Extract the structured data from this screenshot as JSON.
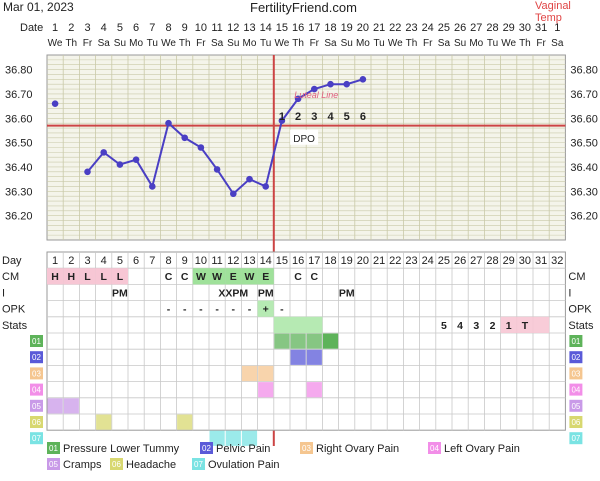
{
  "header": {
    "date": "Mar 01, 2023",
    "site": "FertilityFriend.com",
    "temp_method": "Vaginal Temp"
  },
  "colors": {
    "line": "#4a3fc4",
    "coverline": "#cc4444",
    "grid": "#c9c9a8",
    "chart_bg": "#f4f4ea",
    "cm_pink": "#f7c6d4",
    "cm_green": "#9fe19a",
    "stats_pink": "#f7c6d4",
    "opk_green": "#b6eab3"
  },
  "chart_data": {
    "type": "line",
    "title": "",
    "date_row_label": "Date",
    "day_row_label": "Day",
    "dates": [
      "1",
      "2",
      "3",
      "4",
      "5",
      "6",
      "7",
      "8",
      "9",
      "10",
      "11",
      "12",
      "13",
      "14",
      "15",
      "16",
      "17",
      "18",
      "19",
      "20",
      "21",
      "22",
      "23",
      "24",
      "25",
      "26",
      "27",
      "28",
      "29",
      "30",
      "31",
      "1"
    ],
    "weekdays": [
      "We",
      "Th",
      "Fr",
      "Sa",
      "Su",
      "Mo",
      "Tu",
      "We",
      "Th",
      "Fr",
      "Sa",
      "Su",
      "Mo",
      "Tu",
      "We",
      "Th",
      "Fr",
      "Sa",
      "Su",
      "Mo",
      "Tu",
      "We",
      "Th",
      "Fr",
      "Sa",
      "Su",
      "Mo",
      "Tu",
      "We",
      "Th",
      "Fr",
      "Sa"
    ],
    "days": [
      1,
      2,
      3,
      4,
      5,
      6,
      7,
      8,
      9,
      10,
      11,
      12,
      13,
      14,
      15,
      16,
      17,
      18,
      19,
      20,
      21,
      22,
      23,
      24,
      25,
      26,
      27,
      28,
      29,
      30,
      31,
      32
    ],
    "y_ticks": [
      "36.80",
      "36.70",
      "36.60",
      "36.50",
      "36.40",
      "36.30",
      "36.20"
    ],
    "ylim": [
      36.1,
      36.86
    ],
    "temps": [
      {
        "day": 1,
        "temp": 36.66
      },
      {
        "day": 3,
        "temp": 36.38
      },
      {
        "day": 4,
        "temp": 36.46
      },
      {
        "day": 5,
        "temp": 36.41
      },
      {
        "day": 6,
        "temp": 36.43
      },
      {
        "day": 7,
        "temp": 36.32
      },
      {
        "day": 8,
        "temp": 36.58
      },
      {
        "day": 9,
        "temp": 36.52
      },
      {
        "day": 10,
        "temp": 36.48
      },
      {
        "day": 11,
        "temp": 36.39
      },
      {
        "day": 12,
        "temp": 36.29
      },
      {
        "day": 13,
        "temp": 36.35
      },
      {
        "day": 14,
        "temp": 36.32
      },
      {
        "day": 15,
        "temp": 36.59
      },
      {
        "day": 16,
        "temp": 36.68
      },
      {
        "day": 17,
        "temp": 36.72
      },
      {
        "day": 18,
        "temp": 36.74
      },
      {
        "day": 19,
        "temp": 36.74
      },
      {
        "day": 20,
        "temp": 36.76
      }
    ],
    "connected_from_day": 3,
    "coverline_temp": 36.57,
    "ovulation_day": 14,
    "dpo_label": "DPO",
    "dpo_numbers": [
      {
        "day": 15,
        "label": "1"
      },
      {
        "day": 16,
        "label": "2"
      },
      {
        "day": 17,
        "label": "3"
      },
      {
        "day": 18,
        "label": "4"
      },
      {
        "day": 19,
        "label": "5"
      },
      {
        "day": 20,
        "label": "6"
      }
    ],
    "luteal_label": "Luteal Line",
    "rows": {
      "cm": {
        "label": "CM",
        "values": {
          "1": "H",
          "2": "H",
          "3": "L",
          "4": "L",
          "5": "L",
          "8": "C",
          "9": "C",
          "10": "W",
          "11": "W",
          "12": "E",
          "13": "W",
          "14": "E",
          "16": "C",
          "17": "C"
        }
      },
      "i": {
        "label": "I",
        "values": {
          "5": "PM",
          "12": "XXPM",
          "14": "PM",
          "19": "PM"
        }
      },
      "opk": {
        "label": "OPK",
        "values": {
          "8": "-",
          "9": "-",
          "10": "-",
          "11": "-",
          "12": "-",
          "13": "-",
          "14": "+",
          "15": "-"
        }
      },
      "stats": {
        "label": "Stats",
        "values": {
          "25": "5",
          "26": "4",
          "27": "3",
          "28": "2",
          "29": "1",
          "30": "T"
        }
      }
    },
    "symptom_rows": [
      "01",
      "02",
      "03",
      "04",
      "05",
      "06",
      "07"
    ],
    "symptom_marks": [
      {
        "row": 0,
        "days": [
          15,
          16,
          17
        ]
      },
      {
        "row": 1,
        "days": [
          16,
          17
        ]
      },
      {
        "row": 2,
        "days": [
          13,
          14
        ]
      },
      {
        "row": 3,
        "days": [
          14,
          17
        ]
      },
      {
        "row": 4,
        "days": [
          1,
          2
        ]
      },
      {
        "row": 5,
        "days": [
          4,
          9
        ]
      },
      {
        "row": 6,
        "days": [
          11,
          12,
          13
        ]
      }
    ],
    "symptom_solo_marks": [
      {
        "row": 0,
        "day": 18
      }
    ],
    "legend": [
      {
        "code": "01",
        "label": "Pressure Lower Tummy",
        "color": "#5eb35a"
      },
      {
        "code": "02",
        "label": "Pelvic Pain",
        "color": "#5a5ad8"
      },
      {
        "code": "03",
        "label": "Right Ovary Pain",
        "color": "#f5c690"
      },
      {
        "code": "04",
        "label": "Left Ovary Pain",
        "color": "#f28ee8"
      },
      {
        "code": "05",
        "label": "Cramps",
        "color": "#c99ae8"
      },
      {
        "code": "06",
        "label": "Headache",
        "color": "#d8d870"
      },
      {
        "code": "07",
        "label": "Ovulation Pain",
        "color": "#7ae3e3"
      }
    ]
  }
}
